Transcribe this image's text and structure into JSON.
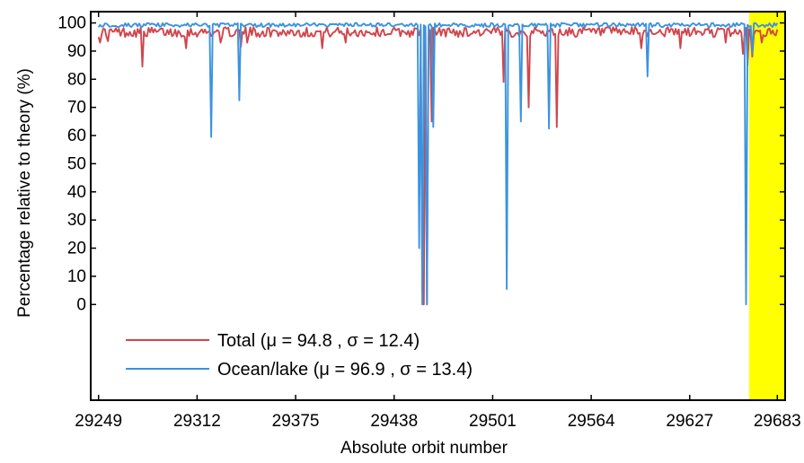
{
  "chart_data": {
    "type": "line",
    "title": "",
    "xlabel": "Absolute orbit number",
    "ylabel": "Percentage relative to theory (%)",
    "xlim": [
      29244,
      29688
    ],
    "ylim": [
      -34,
      104
    ],
    "xticks": [
      29249,
      29312,
      29375,
      29438,
      29501,
      29564,
      29627,
      29683
    ],
    "yticks": [
      0,
      10,
      20,
      30,
      40,
      50,
      60,
      70,
      80,
      90,
      100
    ],
    "grid": false,
    "legend_position": "bottom-left",
    "highlight": {
      "x_range": [
        29665,
        29688
      ],
      "color": "#FFFF00"
    },
    "series": [
      {
        "name": "Total (μ = 94.8 , σ = 12.4)",
        "color": "#D0464C",
        "baseline": 96.5,
        "baseline_range": [
          95,
          98.5
        ],
        "x_range": [
          29249,
          29683
        ],
        "dips": [
          {
            "x": 29250,
            "y": 93
          },
          {
            "x": 29255,
            "y": 93.5
          },
          {
            "x": 29277,
            "y": 84.5
          },
          {
            "x": 29305,
            "y": 91
          },
          {
            "x": 29327,
            "y": 93
          },
          {
            "x": 29340,
            "y": 91.5
          },
          {
            "x": 29344,
            "y": 93
          },
          {
            "x": 29392,
            "y": 91
          },
          {
            "x": 29407,
            "y": 93
          },
          {
            "x": 29456,
            "y": 4
          },
          {
            "x": 29457,
            "y": 0
          },
          {
            "x": 29459,
            "y": 0
          },
          {
            "x": 29462,
            "y": 65
          },
          {
            "x": 29508,
            "y": 79
          },
          {
            "x": 29524,
            "y": 70
          },
          {
            "x": 29542,
            "y": 63
          },
          {
            "x": 29596,
            "y": 91
          },
          {
            "x": 29621,
            "y": 91
          },
          {
            "x": 29650,
            "y": 93
          },
          {
            "x": 29661,
            "y": 89
          },
          {
            "x": 29664,
            "y": 85
          },
          {
            "x": 29667,
            "y": 88
          },
          {
            "x": 29673,
            "y": 93
          }
        ]
      },
      {
        "name": "Ocean/lake (μ = 96.9 , σ = 13.4)",
        "color": "#3A93E0",
        "baseline": 99.3,
        "baseline_range": [
          98.5,
          100
        ],
        "x_range": [
          29249,
          29683
        ],
        "dips": [
          {
            "x": 29321,
            "y": 59.5
          },
          {
            "x": 29339,
            "y": 72.5
          },
          {
            "x": 29454,
            "y": 20
          },
          {
            "x": 29456,
            "y": 0
          },
          {
            "x": 29459,
            "y": 0
          },
          {
            "x": 29463,
            "y": 63
          },
          {
            "x": 29510,
            "y": 5.5
          },
          {
            "x": 29519,
            "y": 65
          },
          {
            "x": 29537,
            "y": 62.5
          },
          {
            "x": 29600,
            "y": 81
          },
          {
            "x": 29663,
            "y": 0
          },
          {
            "x": 29667,
            "y": 89
          }
        ]
      }
    ]
  }
}
